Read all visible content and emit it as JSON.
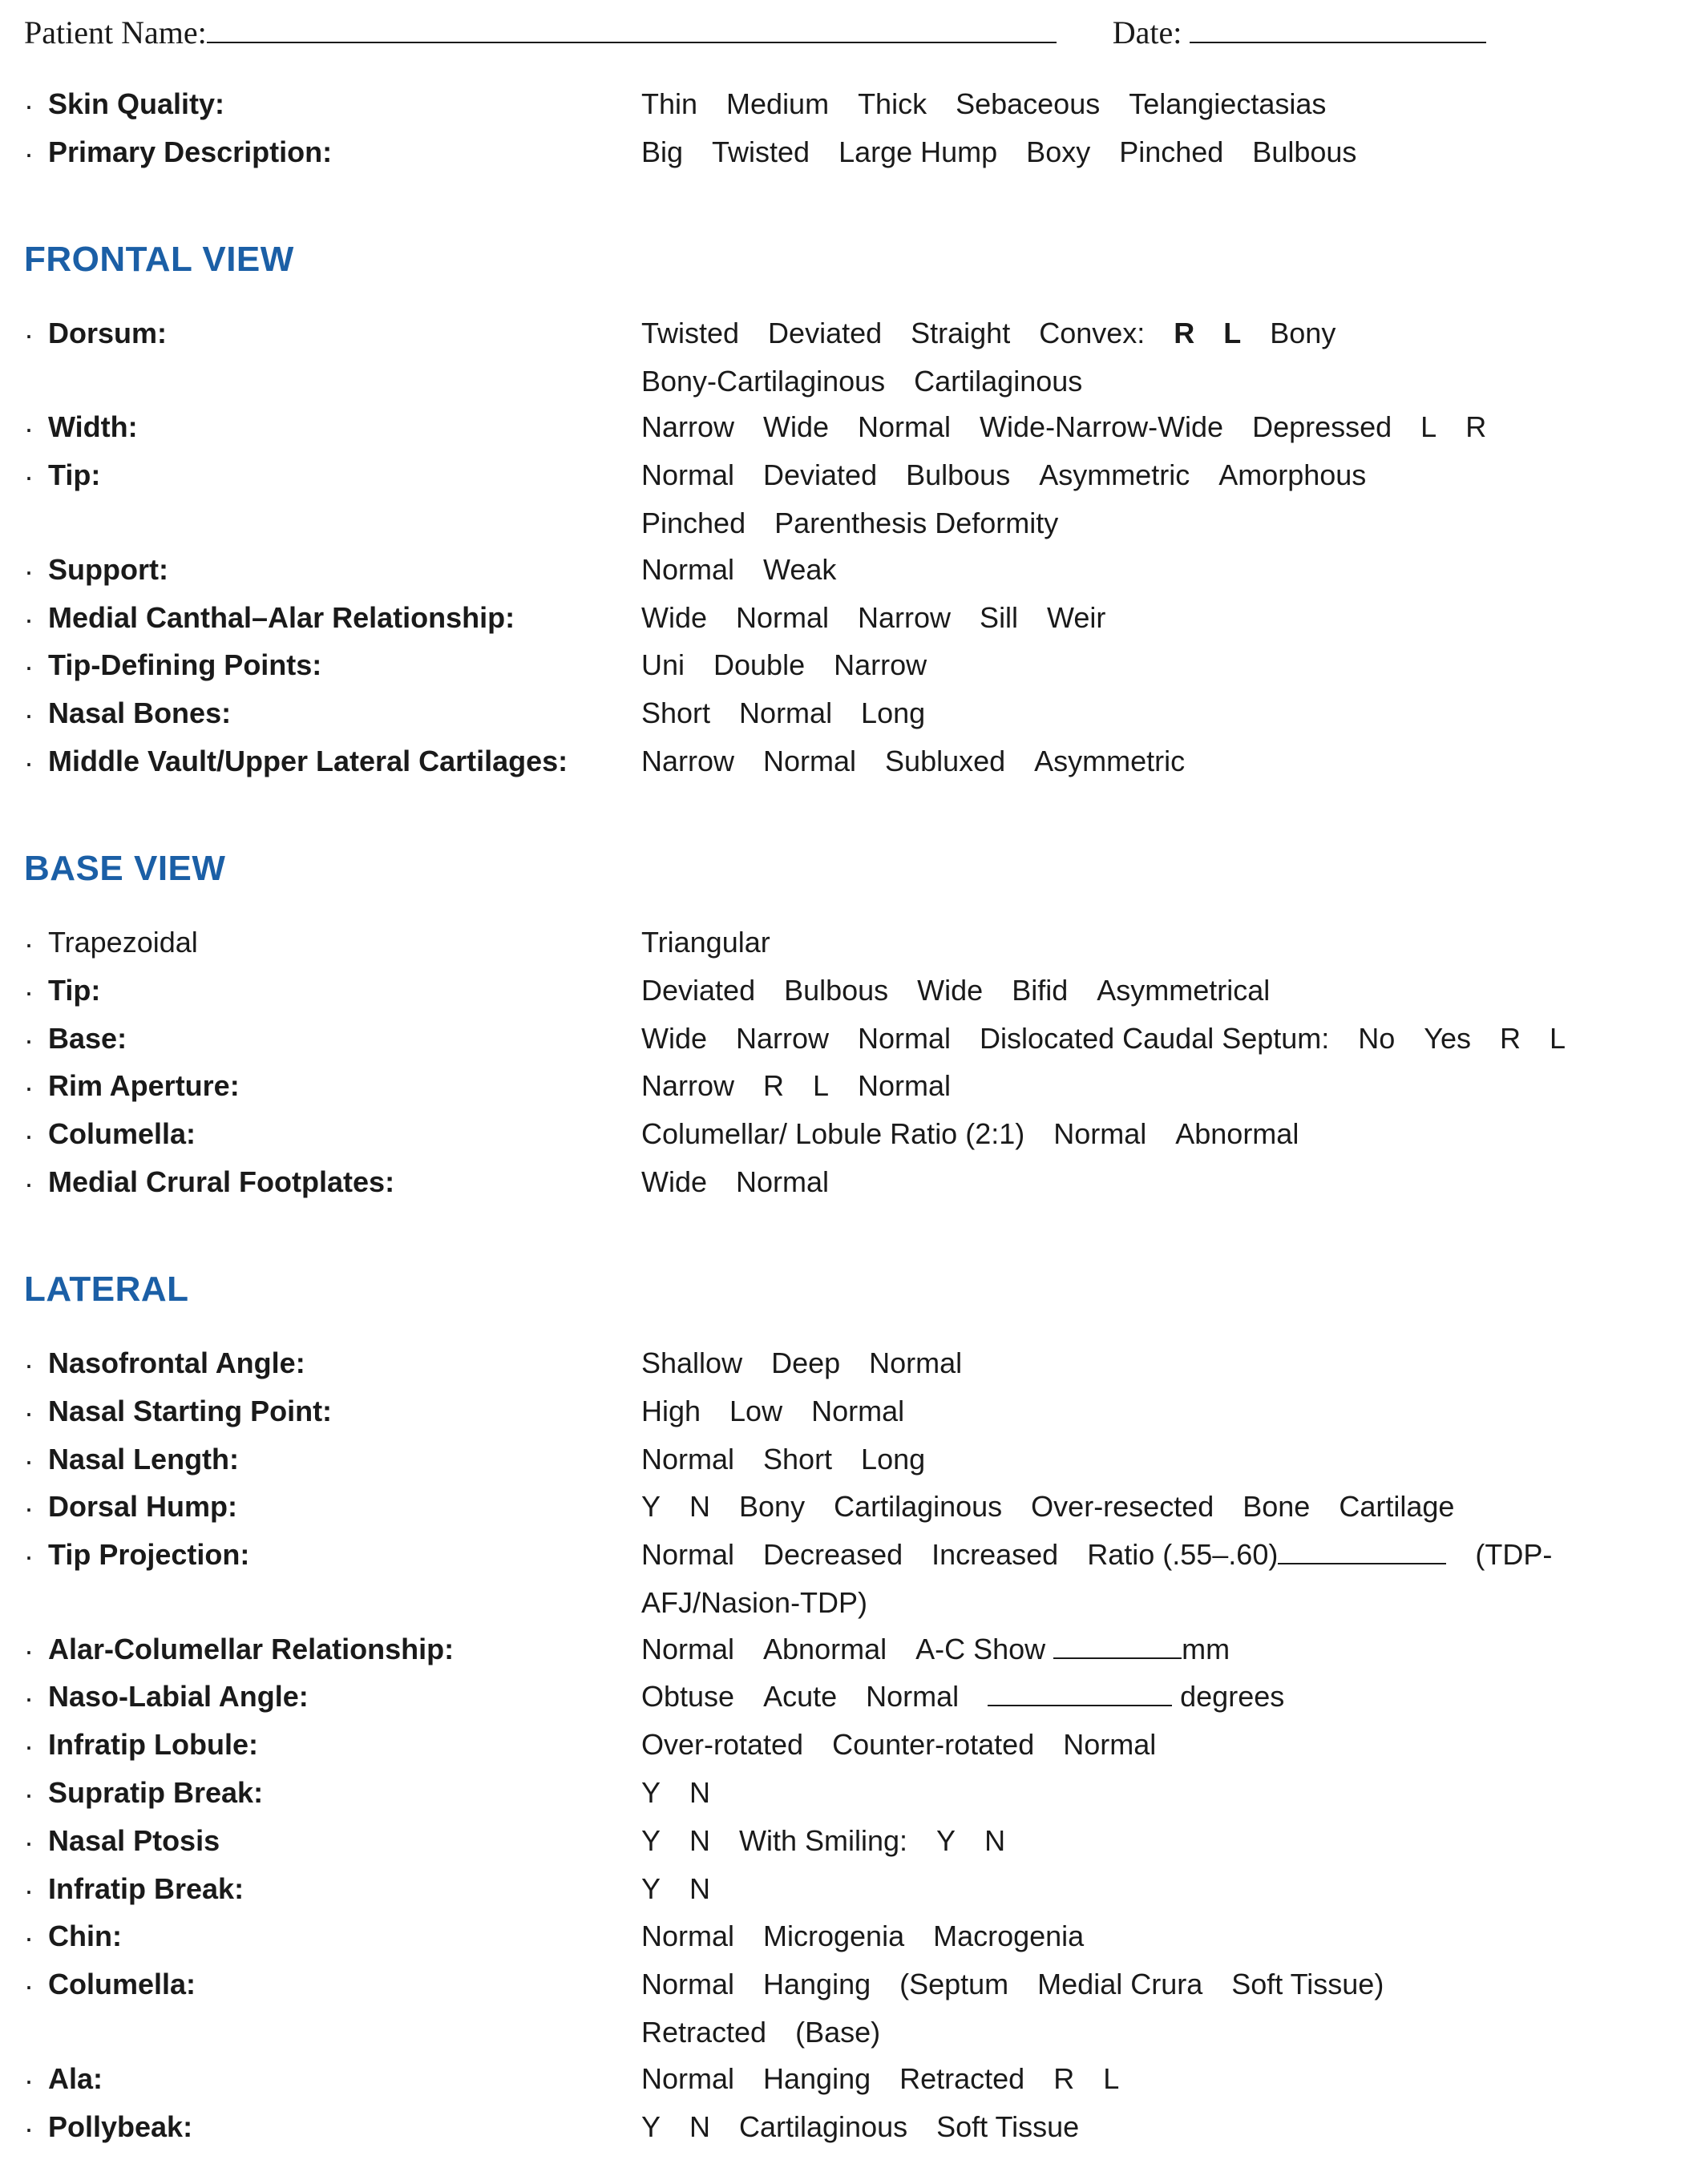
{
  "header": {
    "patient_label": "Patient Name:",
    "date_label": "Date:",
    "name_underline_width": 1060,
    "date_underline_width": 370
  },
  "intro_rows": [
    {
      "bold": true,
      "label": "Skin Quality:",
      "options": "Thin Medium Thick Sebaceous Telangiectasias"
    },
    {
      "bold": true,
      "label": "Primary Description:",
      "options": "Big Twisted Large Hump Boxy Pinched Bulbous"
    }
  ],
  "sections": [
    {
      "title": "FRONTAL VIEW",
      "rows": [
        {
          "bold": true,
          "label": "Dorsum:",
          "options_html": "Twisted Deviated Straight Convex: <span class=\"b\">R L</span> Bony"
        },
        {
          "bold": true,
          "label": "",
          "no_bullet": true,
          "options": "Bony-Cartilaginous Cartilaginous"
        },
        {
          "bold": true,
          "label": "Width:",
          "options": "Narrow Wide Normal Wide-Narrow-Wide Depressed L R"
        },
        {
          "bold": true,
          "label": "Tip:",
          "options": "Normal Deviated Bulbous Asymmetric Amorphous"
        },
        {
          "bold": true,
          "label": "",
          "no_bullet": true,
          "options": "Pinched Parenthesis Deformity"
        },
        {
          "bold": true,
          "label": "Support:",
          "options": "Normal Weak"
        },
        {
          "bold": true,
          "label": "Medial Canthal–Alar Relationship:",
          "options": "Wide Normal Narrow Sill Weir"
        },
        {
          "bold": true,
          "label": "Tip-Defining Points:",
          "options": "Uni Double Narrow"
        },
        {
          "bold": true,
          "label": "Nasal Bones:",
          "options": "Short Normal Long"
        },
        {
          "bold": true,
          "label": "Middle Vault/Upper Lateral Cartilages:",
          "options": "Narrow Normal Subluxed Asymmetric"
        }
      ]
    },
    {
      "title": "BASE VIEW",
      "rows": [
        {
          "bold": false,
          "label": "Trapezoidal",
          "options": "Triangular"
        },
        {
          "bold": true,
          "label": "Tip:",
          "options": "Deviated Bulbous Wide Bifid Asymmetrical"
        },
        {
          "bold": true,
          "label": "Base:",
          "options": "Wide Narrow Normal Dislocated Caudal Septum: No Yes R L"
        },
        {
          "bold": true,
          "label": "Rim Aperture:",
          "options": "Narrow R L Normal"
        },
        {
          "bold": true,
          "label": "Columella:",
          "options": "Columellar/ Lobule Ratio (2:1) Normal Abnormal"
        },
        {
          "bold": true,
          "label": "Medial Crural Footplates:",
          "options": "Wide Normal"
        }
      ]
    },
    {
      "title": "LATERAL",
      "rows": [
        {
          "bold": true,
          "label": "Nasofrontal Angle:",
          "options": "Shallow Deep Normal"
        },
        {
          "bold": true,
          "label": "Nasal Starting Point:",
          "options": "High Low Normal"
        },
        {
          "bold": true,
          "label": "Nasal Length:",
          "options": "Normal Short Long"
        },
        {
          "bold": true,
          "label": "Dorsal Hump:",
          "options": "Y N Bony Cartilaginous Over-resected Bone Cartilage"
        },
        {
          "bold": true,
          "label": "Tip Projection:",
          "options_html": "Normal Decreased Increased Ratio (.55–.60)<span class=\"fill\" style=\"width:210px\"></span> (TDP-"
        },
        {
          "bold": true,
          "label": "",
          "no_bullet": true,
          "options": "AFJ/Nasion-TDP)"
        },
        {
          "bold": true,
          "label": "Alar-Columellar Relationship:",
          "options_html": "Normal Abnormal A-C Show <span class=\"fill\" style=\"width:160px\"></span>mm"
        },
        {
          "bold": true,
          "label": "Naso-Labial Angle:",
          "options_html": "Obtuse Acute Normal <span class=\"fill\" style=\"width:230px\"></span> degrees"
        },
        {
          "bold": true,
          "label": "Infratip Lobule:",
          "options": "Over-rotated Counter-rotated Normal"
        },
        {
          "bold": true,
          "label": "Supratip Break:",
          "options": "Y N"
        },
        {
          "bold": true,
          "label": "Nasal Ptosis",
          "options": "Y N With Smiling: Y N"
        },
        {
          "bold": true,
          "label": "Infratip Break:",
          "options": "Y N"
        },
        {
          "bold": true,
          "label": "Chin:",
          "options": "Normal Microgenia Macrogenia"
        },
        {
          "bold": true,
          "label": "Columella:",
          "options": "Normal Hanging (Septum Medial Crura Soft Tissue)"
        },
        {
          "bold": true,
          "label": "",
          "no_bullet": true,
          "options": "Retracted (Base)"
        },
        {
          "bold": true,
          "label": "Ala:",
          "options": "Normal Hanging Retracted R L"
        },
        {
          "bold": true,
          "label": "Pollybeak:",
          "options": "Y N Cartilaginous Soft Tissue"
        }
      ]
    }
  ],
  "bullet_char": "·"
}
